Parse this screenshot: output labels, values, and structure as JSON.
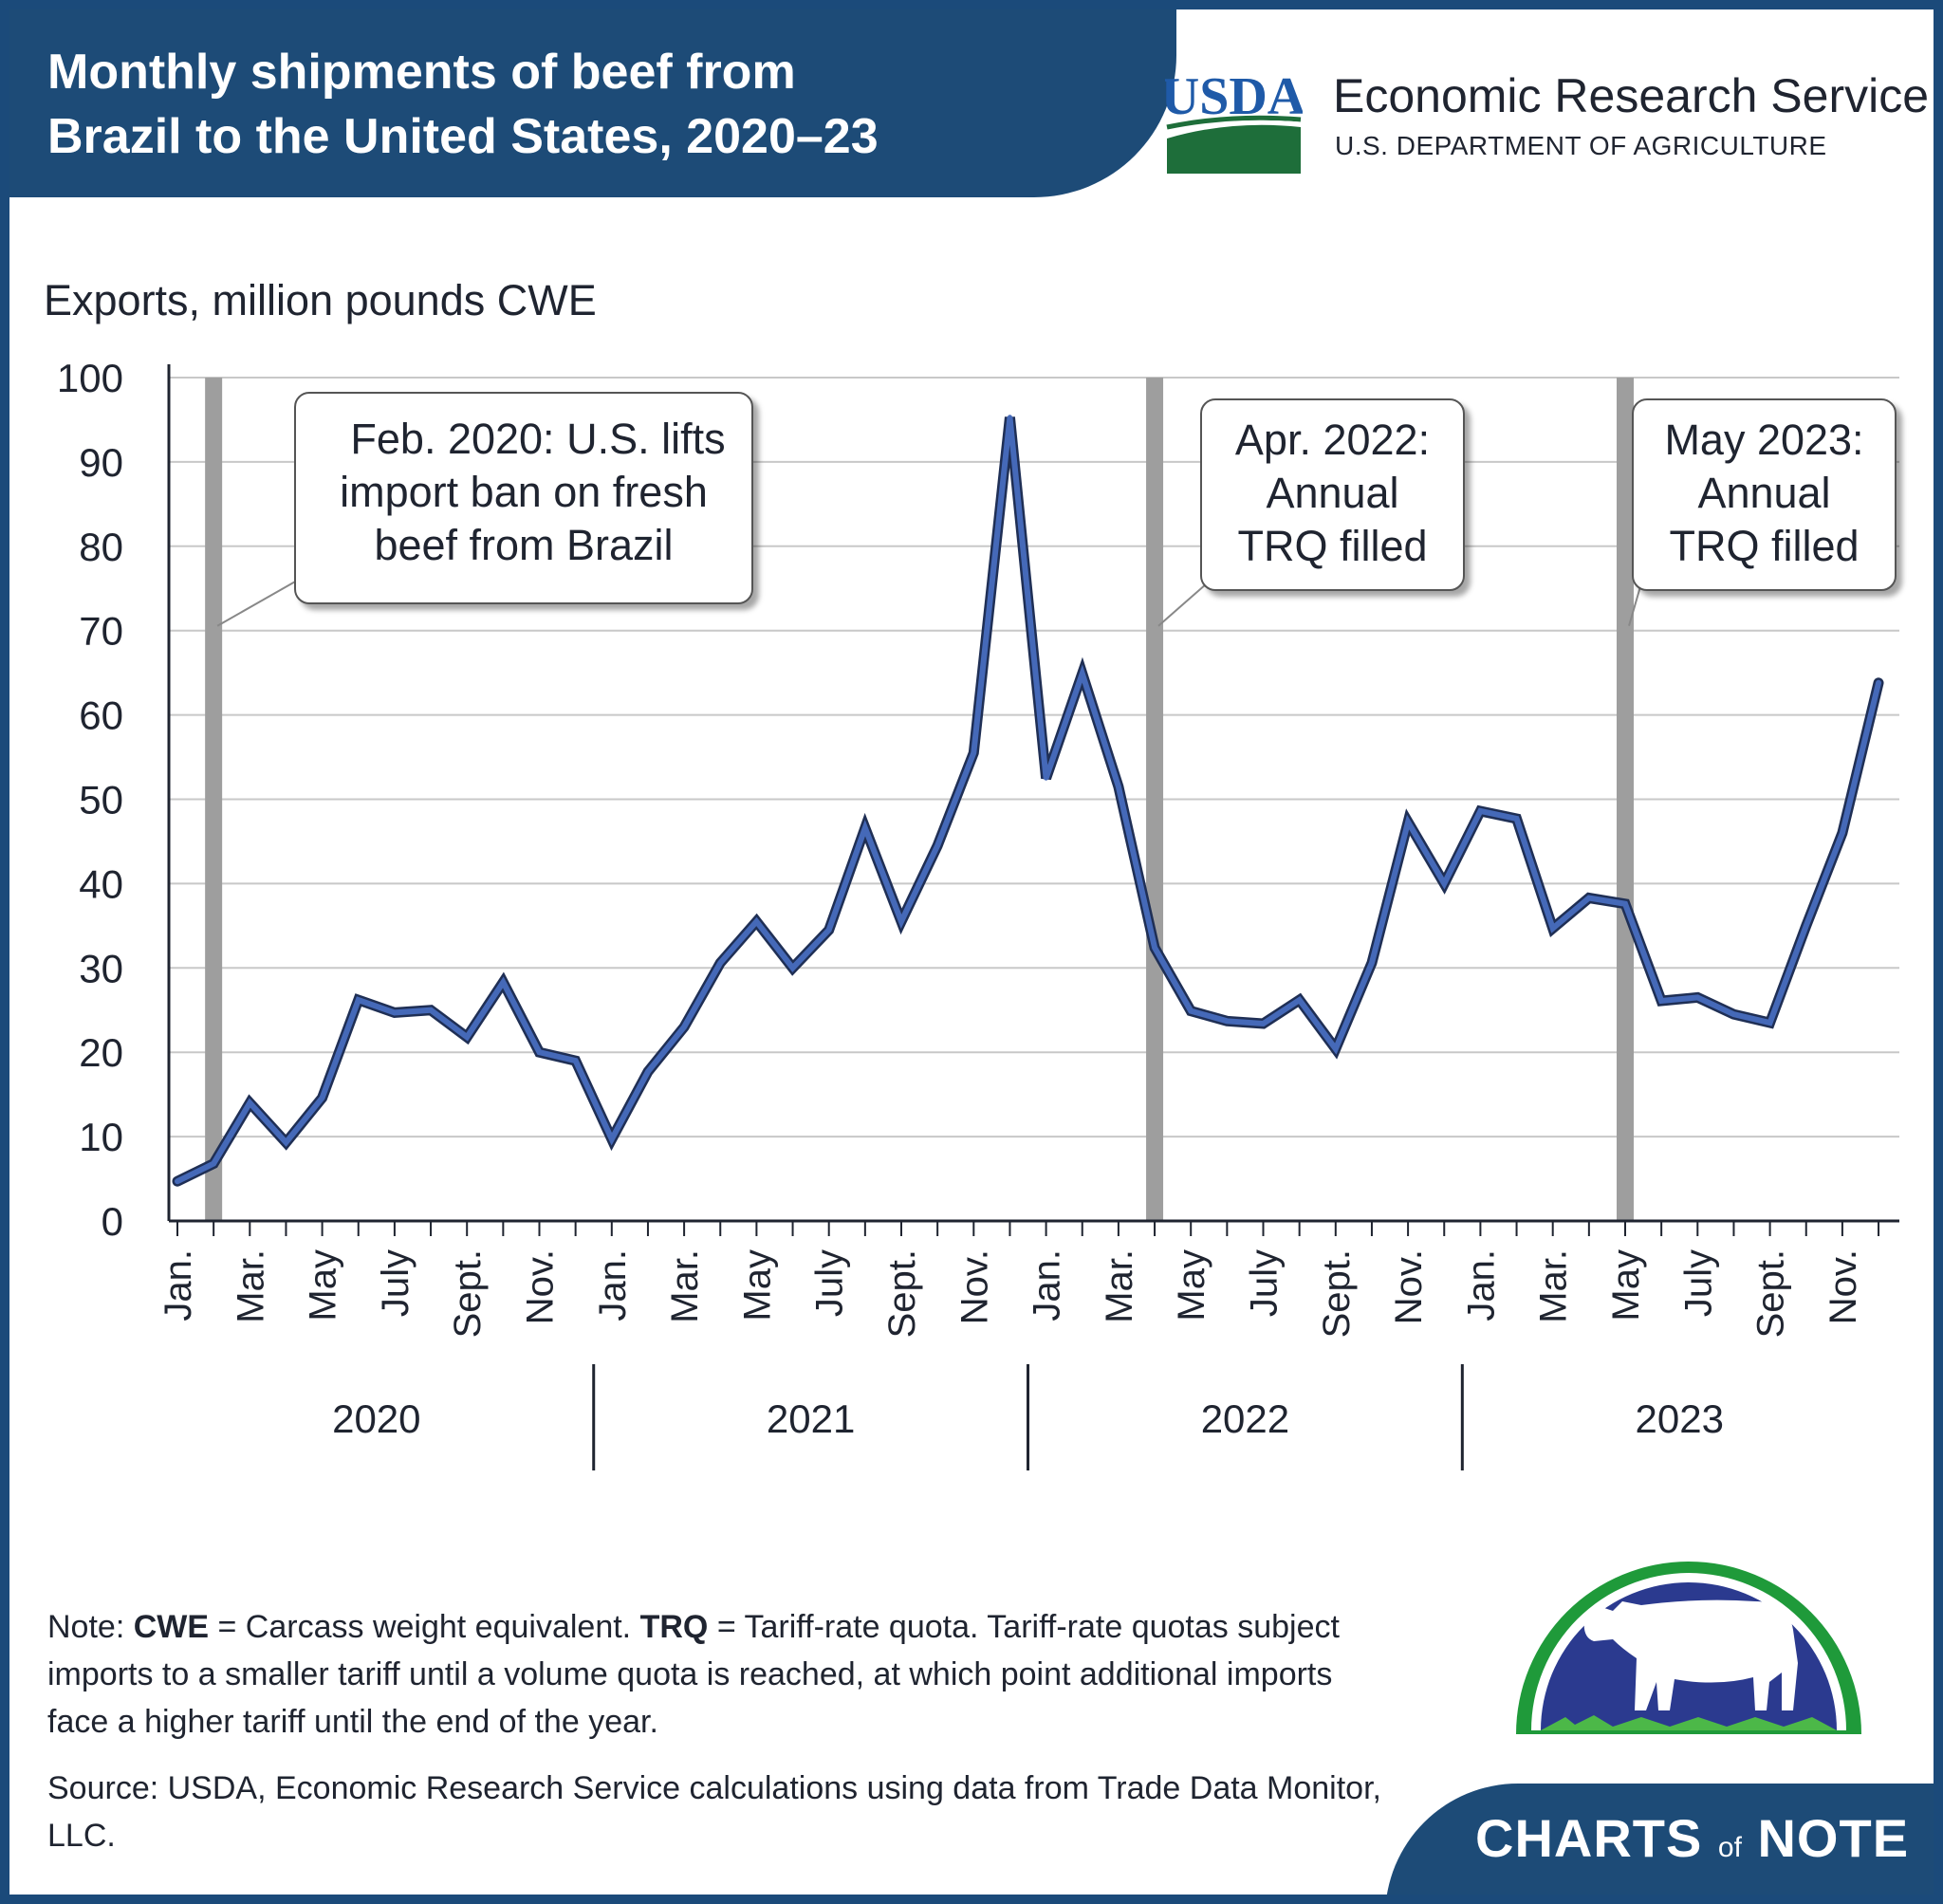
{
  "header": {
    "title_line1": "Monthly shipments of beef from",
    "title_line2": "Brazil to the United States, 2020–23",
    "agency": "Economic Research Service",
    "department": "U.S. DEPARTMENT OF AGRICULTURE",
    "logo_text": "USDA"
  },
  "colors": {
    "header_bg": "#1d4b77",
    "line": "#4569b8",
    "line_outline": "#1f2f55",
    "event_bar": "#9e9e9e",
    "usda_blue": "#1f5aa8",
    "usda_green": "#1e6e3a"
  },
  "chart_data": {
    "type": "line",
    "ylabel": "Exports, million pounds CWE",
    "ylim": [
      0,
      100
    ],
    "yticks": [
      0,
      10,
      20,
      30,
      40,
      50,
      60,
      70,
      80,
      90,
      100
    ],
    "grid": true,
    "month_tick_labels": [
      "Jan.",
      "Mar.",
      "May",
      "July",
      "Sept.",
      "Nov."
    ],
    "years": [
      "2020",
      "2021",
      "2022",
      "2023"
    ],
    "x": [
      "2020-01",
      "2020-02",
      "2020-03",
      "2020-04",
      "2020-05",
      "2020-06",
      "2020-07",
      "2020-08",
      "2020-09",
      "2020-10",
      "2020-11",
      "2020-12",
      "2021-01",
      "2021-02",
      "2021-03",
      "2021-04",
      "2021-05",
      "2021-06",
      "2021-07",
      "2021-08",
      "2021-09",
      "2021-10",
      "2021-11",
      "2021-12",
      "2022-01",
      "2022-02",
      "2022-03",
      "2022-04",
      "2022-05",
      "2022-06",
      "2022-07",
      "2022-08",
      "2022-09",
      "2022-10",
      "2022-11",
      "2022-12",
      "2023-01",
      "2023-02",
      "2023-03",
      "2023-04",
      "2023-05",
      "2023-06",
      "2023-07",
      "2023-08",
      "2023-09",
      "2023-10",
      "2023-11",
      "2023-12"
    ],
    "series": [
      {
        "values": [
          4.7,
          6.8,
          14.0,
          9.3,
          14.6,
          26.2,
          24.7,
          25.0,
          21.8,
          28.3,
          20.0,
          19.0,
          9.7,
          17.7,
          23.0,
          30.6,
          35.5,
          30.0,
          34.5,
          46.6,
          35.5,
          44.5,
          55.5,
          95.3,
          52.5,
          64.9,
          51.5,
          32.4,
          24.9,
          23.7,
          23.4,
          26.2,
          20.4,
          30.6,
          47.3,
          40.0,
          48.6,
          47.7,
          34.7,
          38.3,
          37.6,
          26.1,
          26.5,
          24.5,
          23.5,
          35.0,
          46.0,
          63.8
        ]
      }
    ],
    "annotations": [
      {
        "month": "2020-02",
        "line1": "Feb. 2020: U.S. lifts",
        "line2": "import ban on fresh",
        "line3": "beef from Brazil"
      },
      {
        "month": "2022-04",
        "line1": "Apr. 2022:",
        "line2": "Annual",
        "line3": "TRQ filled"
      },
      {
        "month": "2023-05",
        "line1": "May 2023:",
        "line2": "Annual",
        "line3": "TRQ filled"
      }
    ]
  },
  "footer": {
    "note_label": "Note:",
    "cwe_abbr": "CWE",
    "cwe_text": "= Carcass weight equivalent.",
    "trq_abbr": "TRQ",
    "trq_text": "= Tariff-rate quota. Tariff-rate quotas subject imports to a smaller tariff until a volume quota is reached, at which point additional imports face a higher tariff until the end of the year.",
    "source": "Source: USDA, Economic Research Service calculations using data from Trade Data Monitor, LLC.",
    "brand_charts": "CHARTS",
    "brand_of": "of",
    "brand_note": "NOTE"
  }
}
